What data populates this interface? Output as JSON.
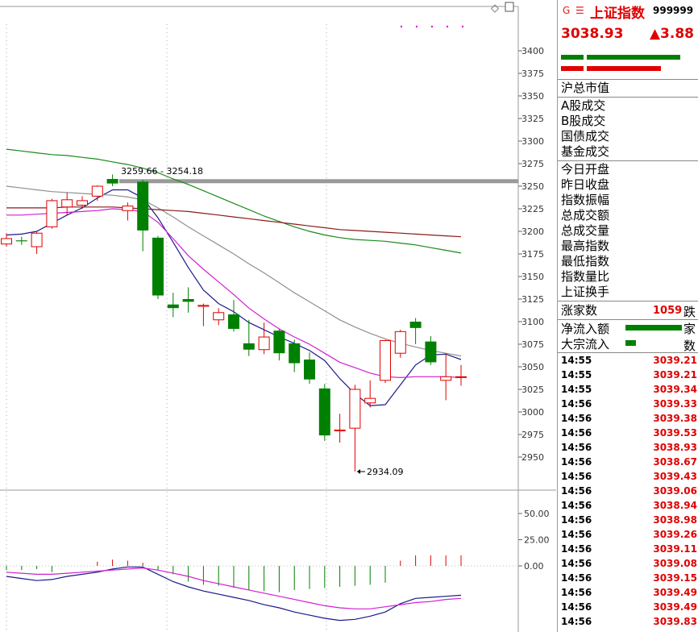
{
  "chart_data": {
    "type": "candlestick",
    "price_axis": {
      "ticks": [
        3400,
        3375,
        3350,
        3325,
        3300,
        3275,
        3250,
        3225,
        3200,
        3175,
        3150,
        3125,
        3100,
        3075,
        3050,
        3025,
        3000,
        2975,
        2950
      ]
    },
    "indicator_axis": {
      "ticks": [
        "50.00",
        "25.00",
        "0.00"
      ]
    },
    "candles": [
      {
        "o": 3186,
        "h": 3198,
        "l": 3183,
        "c": 3192
      },
      {
        "o": 3190,
        "h": 3194,
        "l": 3185,
        "c": 3189
      },
      {
        "o": 3183,
        "h": 3200,
        "l": 3175,
        "c": 3198
      },
      {
        "o": 3205,
        "h": 3236,
        "l": 3203,
        "c": 3234
      },
      {
        "o": 3227,
        "h": 3243,
        "l": 3218,
        "c": 3235
      },
      {
        "o": 3229,
        "h": 3239,
        "l": 3225,
        "c": 3234
      },
      {
        "o": 3239,
        "h": 3251,
        "l": 3234,
        "c": 3250
      },
      {
        "o": 3258,
        "h": 3263,
        "l": 3250,
        "c": 3253
      },
      {
        "o": 3223,
        "h": 3232,
        "l": 3212,
        "c": 3228
      },
      {
        "o": 3255,
        "h": 3257,
        "l": 3178,
        "c": 3201
      },
      {
        "o": 3193,
        "h": 3195,
        "l": 3125,
        "c": 3129
      },
      {
        "o": 3119,
        "h": 3132,
        "l": 3105,
        "c": 3115
      },
      {
        "o": 3125,
        "h": 3138,
        "l": 3110,
        "c": 3122
      },
      {
        "o": 3117,
        "h": 3120,
        "l": 3095,
        "c": 3118
      },
      {
        "o": 3102,
        "h": 3115,
        "l": 3096,
        "c": 3110
      },
      {
        "o": 3108,
        "h": 3124,
        "l": 3089,
        "c": 3092
      },
      {
        "o": 3076,
        "h": 3102,
        "l": 3062,
        "c": 3069
      },
      {
        "o": 3069,
        "h": 3099,
        "l": 3064,
        "c": 3083
      },
      {
        "o": 3090,
        "h": 3092,
        "l": 3057,
        "c": 3065
      },
      {
        "o": 3076,
        "h": 3080,
        "l": 3044,
        "c": 3054
      },
      {
        "o": 3058,
        "h": 3066,
        "l": 3031,
        "c": 3036
      },
      {
        "o": 3026,
        "h": 3031,
        "l": 2968,
        "c": 2974
      },
      {
        "o": 2979,
        "h": 2998,
        "l": 2966,
        "c": 2980
      },
      {
        "o": 2982,
        "h": 3030,
        "l": 2934,
        "c": 3025
      },
      {
        "o": 3010,
        "h": 3035,
        "l": 3005,
        "c": 3015
      },
      {
        "o": 3035,
        "h": 3080,
        "l": 3032,
        "c": 3079
      },
      {
        "o": 3065,
        "h": 3091,
        "l": 3060,
        "c": 3089
      },
      {
        "o": 3100,
        "h": 3104,
        "l": 3075,
        "c": 3093
      },
      {
        "o": 3078,
        "h": 3084,
        "l": 3052,
        "c": 3055
      },
      {
        "o": 3035,
        "h": 3065,
        "l": 3013,
        "c": 3039
      },
      {
        "o": 3039,
        "h": 3052,
        "l": 3029,
        "c": 3039
      }
    ],
    "ma_series": [
      {
        "color": "#1a1a8c",
        "values": [
          3196,
          3197,
          3200,
          3209,
          3218,
          3226,
          3237,
          3246,
          3246,
          3237,
          3215,
          3188,
          3160,
          3135,
          3120,
          3111,
          3099,
          3091,
          3083,
          3076,
          3068,
          3057,
          3037,
          3020,
          3007,
          3008,
          3030,
          3052,
          3063,
          3064,
          3058
        ]
      },
      {
        "color": "#d020d0",
        "values": [
          3218,
          3218,
          3219,
          3220,
          3221,
          3222,
          3223,
          3225,
          3224,
          3222,
          3210,
          3192,
          3173,
          3158,
          3144,
          3130,
          3115,
          3103,
          3092,
          3083,
          3075,
          3065,
          3055,
          3049,
          3043,
          3039,
          3038,
          3039,
          3039,
          3039,
          3038
        ]
      },
      {
        "color": "#909090",
        "values": [
          3250,
          3248,
          3246,
          3244,
          3243,
          3242,
          3241,
          3240,
          3238,
          3235,
          3226,
          3216,
          3205,
          3195,
          3185,
          3175,
          3164,
          3154,
          3143,
          3132,
          3122,
          3112,
          3102,
          3094,
          3087,
          3081,
          3076,
          3072,
          3068,
          3065,
          3062
        ]
      },
      {
        "color": "#1a8a1a",
        "values": [
          3291,
          3289,
          3287,
          3285,
          3284,
          3282,
          3280,
          3277,
          3274,
          3270,
          3265,
          3258,
          3252,
          3245,
          3238,
          3231,
          3224,
          3217,
          3211,
          3205,
          3200,
          3196,
          3193,
          3191,
          3190,
          3189,
          3187,
          3185,
          3182,
          3179,
          3176
        ]
      },
      {
        "color": "#8b1a1a",
        "values": [
          3226,
          3226,
          3226,
          3226,
          3227,
          3227,
          3227,
          3227,
          3226,
          3225,
          3224,
          3223,
          3222,
          3220,
          3218,
          3216,
          3214,
          3212,
          3210,
          3208,
          3206,
          3204,
          3202,
          3201,
          3200,
          3199,
          3198,
          3197,
          3196,
          3195,
          3194
        ]
      }
    ],
    "annotations": {
      "high_text": "3259.66 - 3254.18",
      "low_text": "2934.09",
      "band_price": 3256
    },
    "indicator": {
      "bars": [
        -4,
        -4,
        -3,
        -6,
        0,
        0,
        4,
        6,
        5,
        3,
        -4,
        -8,
        -15,
        -18,
        -19,
        -21,
        -23,
        -24,
        -25,
        -23,
        -22,
        -21,
        -20,
        -19,
        -18,
        -16,
        5,
        10,
        10,
        10,
        10
      ],
      "line1": [
        -10,
        -12,
        -14,
        -13,
        -10,
        -8,
        -6,
        -3,
        -1,
        -1,
        -8,
        -15,
        -20,
        -24,
        -27,
        -30,
        -33,
        -37,
        -40,
        -44,
        -47,
        -50,
        -52,
        -51,
        -48,
        -44,
        -36,
        -31,
        -30,
        -29,
        -28
      ],
      "line2": [
        -6,
        -7,
        -8,
        -8,
        -7,
        -6,
        -5,
        -4,
        -3,
        -2,
        -4,
        -7,
        -10,
        -14,
        -17,
        -20,
        -23,
        -26,
        -29,
        -32,
        -35,
        -38,
        -40,
        -41,
        -41,
        -39,
        -37,
        -35,
        -34,
        -32,
        -31
      ]
    }
  },
  "panel": {
    "name": "上证指数",
    "code": "999999",
    "last": "3038.93",
    "change": "▲3.88",
    "sec1": [
      "沪总市值"
    ],
    "sec2": [
      "A股成交",
      "B股成交",
      "国债成交",
      "基金成交"
    ],
    "sec3": [
      "今日开盘",
      "昨日收盘",
      "指数振幅",
      "总成交额",
      "总成交量",
      "最高指数",
      "最低指数",
      "指数量比",
      "上证换手"
    ],
    "updown": {
      "label": "涨家数",
      "value": "1059",
      "label2": "跌家数"
    },
    "flows": [
      {
        "label": "净流入额",
        "fill": 0.92
      },
      {
        "label": "大宗流入",
        "fill": 0.17
      }
    ],
    "ticks": [
      {
        "t": "14:55",
        "p": "3039.21"
      },
      {
        "t": "14:55",
        "p": "3039.21"
      },
      {
        "t": "14:55",
        "p": "3039.34"
      },
      {
        "t": "14:56",
        "p": "3039.33"
      },
      {
        "t": "14:56",
        "p": "3039.38"
      },
      {
        "t": "14:56",
        "p": "3039.53"
      },
      {
        "t": "14:56",
        "p": "3038.93"
      },
      {
        "t": "14:56",
        "p": "3038.67"
      },
      {
        "t": "14:56",
        "p": "3039.43"
      },
      {
        "t": "14:56",
        "p": "3039.06"
      },
      {
        "t": "14:56",
        "p": "3038.94"
      },
      {
        "t": "14:56",
        "p": "3038.98"
      },
      {
        "t": "14:56",
        "p": "3039.26"
      },
      {
        "t": "14:56",
        "p": "3039.11"
      },
      {
        "t": "14:56",
        "p": "3039.08"
      },
      {
        "t": "14:56",
        "p": "3039.15"
      },
      {
        "t": "14:56",
        "p": "3039.49"
      },
      {
        "t": "14:56",
        "p": "3039.49"
      },
      {
        "t": "14:56",
        "p": "3039.83"
      }
    ]
  }
}
